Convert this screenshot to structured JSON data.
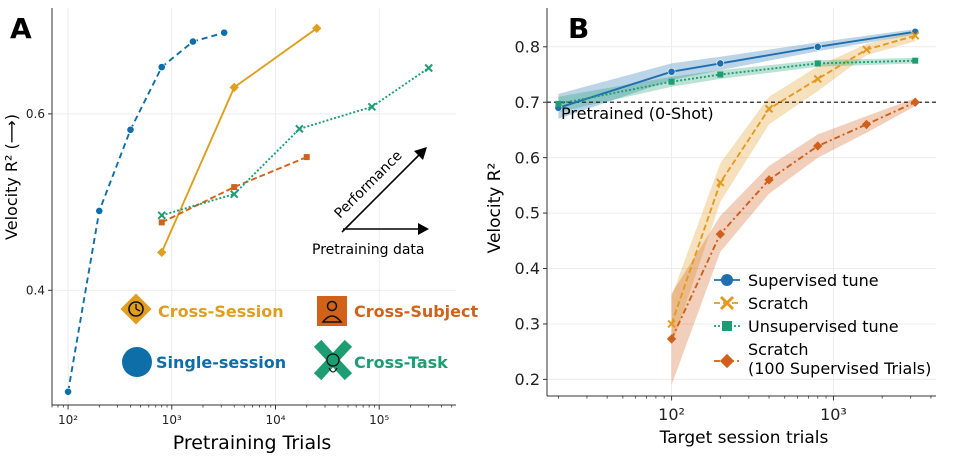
{
  "panels": {
    "a": "A",
    "b": "B"
  },
  "chart_data": [
    {
      "type": "line",
      "panel": "A",
      "xscale": "log",
      "xlim": [
        70,
        550000
      ],
      "ylim": [
        0.27,
        0.72
      ],
      "xlabel": "Pretraining Trials",
      "ylabel": "Velocity R² (⟶)",
      "xticks": [
        {
          "v": 100,
          "label": "10²"
        },
        {
          "v": 1000,
          "label": "10³"
        },
        {
          "v": 10000,
          "label": "10⁴"
        },
        {
          "v": 100000,
          "label": "10⁵"
        }
      ],
      "yticks": [
        {
          "v": 0.4,
          "label": "0.4"
        },
        {
          "v": 0.6,
          "label": "0.6"
        }
      ],
      "grid": true,
      "series": [
        {
          "name": "Single-session",
          "color": "#0e6fa8",
          "dash": "6,4",
          "marker": "circle",
          "x": [
            100,
            200,
            400,
            800,
            1600,
            3200
          ],
          "y": [
            0.285,
            0.49,
            0.582,
            0.653,
            0.682,
            0.692
          ]
        },
        {
          "name": "Cross-Session",
          "color": "#e09e1f",
          "dash": "",
          "marker": "diamond",
          "x": [
            800,
            4000,
            25000
          ],
          "y": [
            0.443,
            0.63,
            0.697
          ]
        },
        {
          "name": "Cross-Subject",
          "color": "#d0621a",
          "dash": "6,3",
          "marker": "square",
          "x": [
            800,
            4000,
            20000
          ],
          "y": [
            0.477,
            0.517,
            0.551
          ]
        },
        {
          "name": "Cross-Task",
          "color": "#1d9e72",
          "dash": "2,2",
          "marker": "x",
          "x": [
            800,
            4000,
            17000,
            85000,
            300000
          ],
          "y": [
            0.485,
            0.509,
            0.583,
            0.608,
            0.652
          ]
        }
      ],
      "arrow_labels": {
        "performance": "Performance",
        "pretraining_data": "Pretraining data"
      },
      "legend": [
        {
          "label": "Cross-Session",
          "color": "#e09e1f",
          "icon": "clock-icon"
        },
        {
          "label": "Cross-Subject",
          "color": "#d0621a",
          "icon": "person-icon"
        },
        {
          "label": "Single-session",
          "color": "#0e6fa8",
          "icon": "circle-icon"
        },
        {
          "label": "Cross-Task",
          "color": "#1d9e72",
          "icon": "brain-icon"
        }
      ]
    },
    {
      "type": "line",
      "panel": "B",
      "xscale": "log",
      "xlim": [
        17,
        4300
      ],
      "ylim": [
        0.17,
        0.87
      ],
      "xlabel": "Target session trials",
      "ylabel": "Velocity R²",
      "xticks": [
        {
          "v": 100,
          "label": "10²"
        },
        {
          "v": 1000,
          "label": "10³"
        }
      ],
      "yticks": [
        {
          "v": 0.2,
          "label": "0.2"
        },
        {
          "v": 0.3,
          "label": "0.3"
        },
        {
          "v": 0.4,
          "label": "0.4"
        },
        {
          "v": 0.5,
          "label": "0.5"
        },
        {
          "v": 0.6,
          "label": "0.6"
        },
        {
          "v": 0.7,
          "label": "0.7"
        },
        {
          "v": 0.8,
          "label": "0.8"
        }
      ],
      "grid": true,
      "reference_line": {
        "y": 0.7,
        "label": "Pretrained (0-Shot)"
      },
      "series": [
        {
          "name": "Supervised tune",
          "color": "#1f6faf",
          "dash": "",
          "marker": "circle",
          "x": [
            20,
            100,
            200,
            800,
            3200
          ],
          "y": [
            0.69,
            0.755,
            0.77,
            0.8,
            0.827
          ],
          "band_lo": [
            0.67,
            0.74,
            0.758,
            0.792,
            0.822
          ],
          "band_hi": [
            0.715,
            0.77,
            0.782,
            0.808,
            0.832
          ]
        },
        {
          "name": "Scratch",
          "color": "#e39a22",
          "dash": "6,3",
          "marker": "x",
          "x": [
            100,
            200,
            400,
            800,
            1600,
            3200
          ],
          "y": [
            0.3,
            0.555,
            0.688,
            0.742,
            0.795,
            0.82
          ],
          "band_lo": [
            0.26,
            0.52,
            0.66,
            0.72,
            0.785,
            0.81
          ],
          "band_hi": [
            0.35,
            0.59,
            0.71,
            0.765,
            0.805,
            0.828
          ]
        },
        {
          "name": "Unsupervised tune",
          "color": "#1d9e72",
          "dash": "2,2",
          "marker": "square",
          "x": [
            20,
            100,
            200,
            800,
            3200
          ],
          "y": [
            0.697,
            0.737,
            0.75,
            0.77,
            0.775
          ],
          "band_lo": [
            0.682,
            0.728,
            0.742,
            0.764,
            0.77
          ],
          "band_hi": [
            0.71,
            0.746,
            0.758,
            0.776,
            0.78
          ]
        },
        {
          "name": "Scratch\n(100 Supervised Trials)",
          "color": "#cf5f1a",
          "dash": "6,3,2,3",
          "marker": "diamond",
          "x": [
            100,
            200,
            400,
            800,
            1600,
            3200
          ],
          "y": [
            0.273,
            0.462,
            0.56,
            0.621,
            0.66,
            0.7
          ],
          "band_lo": [
            0.19,
            0.43,
            0.535,
            0.6,
            0.645,
            0.693
          ],
          "band_hi": [
            0.355,
            0.495,
            0.585,
            0.642,
            0.675,
            0.707
          ]
        }
      ],
      "legend_position": "lower-right"
    }
  ]
}
